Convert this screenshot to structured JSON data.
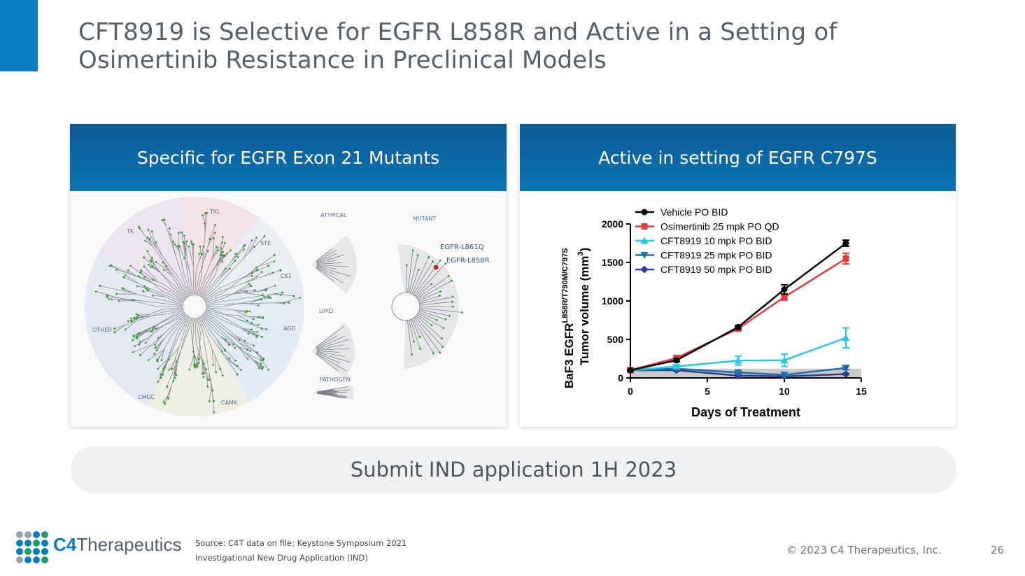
{
  "slide": {
    "title_line1": "CFT8919 is Selective for EGFR L858R and Active in a Setting of",
    "title_line2": "Osimertinib Resistance in Preclinical Models",
    "accent_color": "#0b7cc1"
  },
  "left_panel": {
    "header": "Specific for EGFR Exon 21 Mutants",
    "kinome_groups": [
      "TKL",
      "TK",
      "STE",
      "CK1",
      "AGC",
      "OTHER",
      "CMGC",
      "CAMK"
    ],
    "side_groups": [
      "ATYPICAL",
      "LIPID",
      "PATHOGEN",
      "MUTANT"
    ],
    "mutant_labels": [
      "EGFR-L861Q",
      "EGFR-L858R"
    ]
  },
  "right_panel": {
    "header": "Active in setting of EGFR C797S"
  },
  "chart_data": {
    "type": "line",
    "ylabel_line1": "BaF3 EGFR",
    "ylabel_sup": "L858R/T790M/C797S",
    "ylabel_line2": "Tumor volume (mm",
    "ylabel_sup2": "3",
    "ylabel_end": ")",
    "xlabel": "Days of Treatment",
    "xlim": [
      0,
      15
    ],
    "ylim": [
      0,
      2000
    ],
    "xticks": [
      0,
      5,
      10,
      15
    ],
    "yticks": [
      0,
      500,
      1000,
      1500,
      2000
    ],
    "shaded_band": [
      0,
      120
    ],
    "legend_position": "top-left",
    "series": [
      {
        "name": "Vehicle PO BID",
        "color": "#000000",
        "marker": "circle",
        "x": [
          0,
          3,
          7,
          10,
          14
        ],
        "y": [
          100,
          230,
          660,
          1150,
          1750
        ],
        "err": [
          10,
          20,
          20,
          60,
          40
        ]
      },
      {
        "name": "Osimertinib 25 mpk PO QD",
        "color": "#e8383d",
        "marker": "square",
        "x": [
          0,
          3,
          7,
          10,
          14
        ],
        "y": [
          100,
          260,
          640,
          1050,
          1550
        ],
        "err": [
          10,
          20,
          20,
          40,
          70
        ]
      },
      {
        "name": "CFT8919 10 mpk PO BID",
        "color": "#27c8e6",
        "marker": "triangle-up",
        "x": [
          0,
          3,
          7,
          10,
          14
        ],
        "y": [
          100,
          150,
          225,
          230,
          520
        ],
        "err": [
          10,
          20,
          60,
          80,
          130
        ]
      },
      {
        "name": "CFT8919 25 mpk PO BID",
        "color": "#1d6fa8",
        "marker": "triangle-down",
        "x": [
          0,
          3,
          7,
          10,
          14
        ],
        "y": [
          100,
          120,
          70,
          40,
          130
        ],
        "err": [
          5,
          10,
          15,
          10,
          20
        ]
      },
      {
        "name": "CFT8919 50 mpk PO BID",
        "color": "#2a3f8c",
        "marker": "diamond",
        "x": [
          0,
          3,
          7,
          10,
          14
        ],
        "y": [
          100,
          100,
          30,
          20,
          50
        ],
        "err": [
          5,
          10,
          5,
          5,
          10
        ]
      }
    ]
  },
  "cta": {
    "text": "Submit IND application 1H 2023"
  },
  "footer": {
    "logo_c4": "C4",
    "logo_name": "Therapeutics",
    "source_line1": "Source:  C4T data on file; Keystone Symposium 2021",
    "source_line2": "Investigational New Drug Application (IND)",
    "copyright": "© 2023 C4 Therapeutics, Inc.",
    "page": "26"
  }
}
